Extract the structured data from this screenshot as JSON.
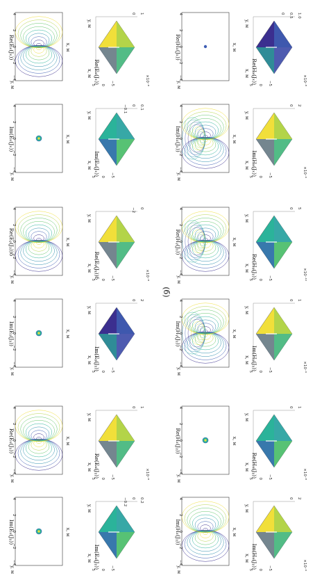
{
  "figure_label": "(б)",
  "axis_labels": {
    "x": "x, м",
    "y": "y, м"
  },
  "contour_ticks": [
    "4",
    "2",
    "0",
    "−2",
    "−4"
  ],
  "surface_ticks": [
    "5",
    "0",
    "−5"
  ],
  "panels": [
    {
      "title": "Re(Eₓ(Jₓ))",
      "type": "contour",
      "pattern": "dipole",
      "exp": ""
    },
    {
      "title": "Im(Eₓ(Jₓ))",
      "type": "contour",
      "pattern": "spot",
      "exp": ""
    },
    {
      "title": "Re(Eᵧ(Jᵧ))δ",
      "type": "contour",
      "pattern": "dipole",
      "exp": ""
    },
    {
      "title": "Im(Eᵧ(Jᵧ))",
      "type": "contour",
      "pattern": "spot",
      "exp": ""
    },
    {
      "title": "Re(Eₓ(Jᵧ))",
      "type": "contour",
      "pattern": "dipole",
      "exp": ""
    },
    {
      "title": "Im(Eₓ(Jᵧ))",
      "type": "contour",
      "pattern": "spot",
      "exp": ""
    },
    {
      "title": "Re(Eₓ(Jₓ))",
      "type": "surface",
      "exp": "×10⁻⁸",
      "zticks": [
        "1",
        "0"
      ],
      "tone": "warm"
    },
    {
      "title": "Im(Eₓ(Jₓ))",
      "type": "surface",
      "exp": "",
      "zticks": [
        "0.1",
        "0",
        "−0.1"
      ],
      "tone": "teal"
    },
    {
      "title": "Re(Eᵧ(Jᵧ))δ",
      "type": "surface",
      "exp": "×10⁻⁸",
      "zticks": [
        "0",
        "−2"
      ],
      "tone": "warm"
    },
    {
      "title": "Im(Eᵧ(Jᵧ))",
      "type": "surface",
      "exp": "",
      "zticks": [
        "2",
        "0"
      ],
      "tone": "violet"
    },
    {
      "title": "Re(Eₓ(Jᵧ))",
      "type": "surface",
      "exp": "×10⁻⁸",
      "zticks": [
        "1",
        "0"
      ],
      "tone": "warm"
    },
    {
      "title": "Im(Eₓ(Jᵧ))",
      "type": "surface",
      "exp": "",
      "zticks": [
        "0.2",
        "0",
        "−0.2"
      ],
      "tone": "teal"
    },
    {
      "title": "Re(Hₓ(Jₓ))",
      "type": "contour",
      "pattern": "dot",
      "exp": ""
    },
    {
      "title": "Im(Hₓ(Jₓ))",
      "type": "contour",
      "pattern": "quad",
      "exp": ""
    },
    {
      "title": "Re(Hᵧ(Jᵧ))",
      "type": "contour",
      "pattern": "quad",
      "exp": ""
    },
    {
      "title": "Im(Hᵧ(Jᵧ))",
      "type": "contour",
      "pattern": "quad",
      "exp": ""
    },
    {
      "title": "Re(Hₓ(Jᵧ))",
      "type": "contour",
      "pattern": "spot",
      "exp": ""
    },
    {
      "title": "Im(Hₓ(Jᵧ))",
      "type": "contour",
      "pattern": "dipole",
      "exp": ""
    },
    {
      "title": "Re(Hₓ(Jₓ))",
      "type": "surface",
      "exp": "×10⁻⁸",
      "zticks": [
        "1.0",
        "0.5",
        "0"
      ],
      "tone": "violet"
    },
    {
      "title": "Im(Hₓ(Jₓ))",
      "type": "surface",
      "exp": "×10⁻⁹",
      "zticks": [
        "2",
        "0"
      ],
      "tone": "warm"
    },
    {
      "title": "Re(Hᵧ(Jᵧ))",
      "type": "surface",
      "exp": "×10⁻¹⁰",
      "zticks": [
        "5",
        "0"
      ],
      "tone": "teal"
    },
    {
      "title": "Im(Hᵧ(Jᵧ))",
      "type": "surface",
      "exp": "×10⁻⁹",
      "zticks": [
        "1",
        "0"
      ],
      "tone": "warm"
    },
    {
      "title": "Re(Hₓ(Jᵧ))",
      "type": "surface",
      "exp": "×10⁻⁸",
      "zticks": [
        "1",
        "0"
      ],
      "tone": "teal"
    },
    {
      "title": "Im(Hₓ(Jᵧ))",
      "type": "surface",
      "exp": "×10⁻⁹",
      "zticks": [
        "2",
        "0"
      ],
      "tone": "warm"
    }
  ]
}
